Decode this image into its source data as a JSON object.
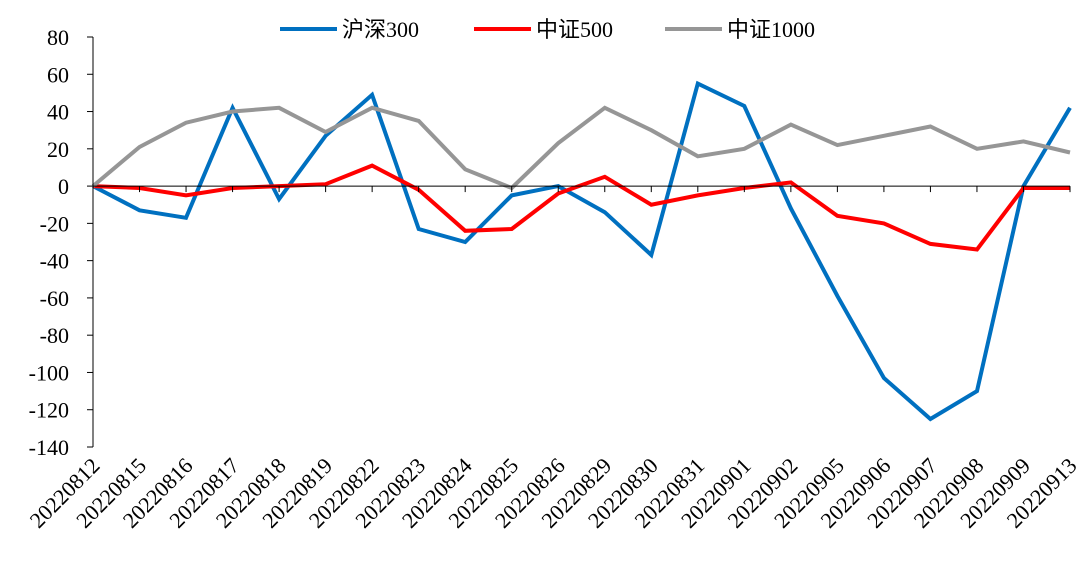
{
  "chart_data": {
    "type": "line",
    "title": "",
    "xlabel": "",
    "ylabel": "",
    "ylim": [
      -140,
      80
    ],
    "yticks": [
      80,
      60,
      40,
      20,
      0,
      -20,
      -40,
      -60,
      -80,
      -100,
      -120,
      -140
    ],
    "grid": false,
    "legend_position": "top-center",
    "categories": [
      "20220812",
      "20220815",
      "20220816",
      "20220817",
      "20220818",
      "20220819",
      "20220822",
      "20220823",
      "20220824",
      "20220825",
      "20220826",
      "20220829",
      "20220830",
      "20220831",
      "20220901",
      "20220902",
      "20220905",
      "20220906",
      "20220907",
      "20220908",
      "20220909",
      "20220913"
    ],
    "series": [
      {
        "name": "沪深300",
        "color": "#0070C0",
        "values": [
          0,
          -13,
          -17,
          42,
          -7,
          27,
          49,
          -23,
          -30,
          -5,
          0,
          -14,
          -37,
          55,
          43,
          -12,
          -59,
          -103,
          -125,
          -110,
          0,
          42
        ]
      },
      {
        "name": "中证500",
        "color": "#FF0000",
        "values": [
          0,
          -1,
          -5,
          -1,
          0,
          1,
          11,
          -2,
          -24,
          -23,
          -4,
          5,
          -10,
          -5,
          -1,
          2,
          -16,
          -20,
          -31,
          -34,
          -1,
          -1
        ]
      },
      {
        "name": "中证1000",
        "color": "#969696",
        "values": [
          0,
          21,
          34,
          40,
          42,
          29,
          42,
          35,
          9,
          -1,
          23,
          42,
          30,
          16,
          20,
          33,
          22,
          27,
          32,
          20,
          24,
          18
        ]
      }
    ]
  }
}
